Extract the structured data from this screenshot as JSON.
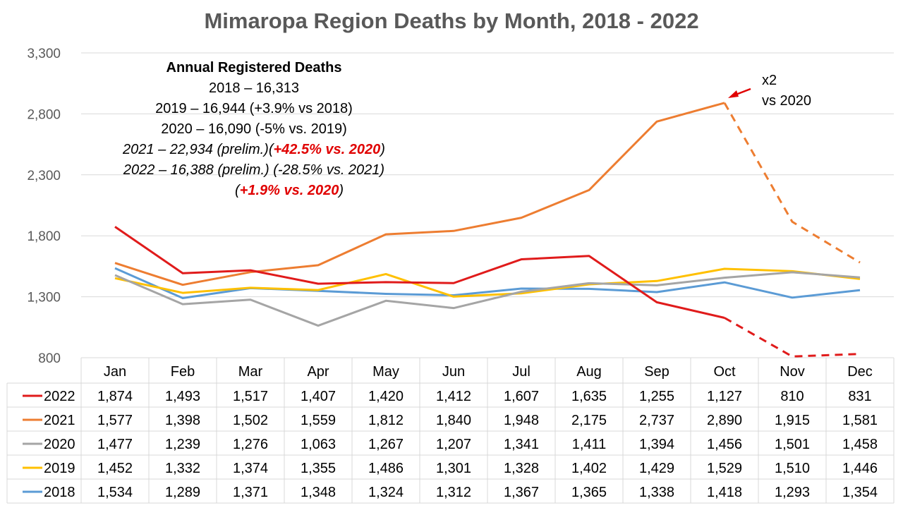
{
  "chart_data": {
    "type": "line",
    "title": "Mimaropa Region  Deaths by Month, 2018 - 2022",
    "categories": [
      "Jan",
      "Feb",
      "Mar",
      "Apr",
      "May",
      "Jun",
      "Jul",
      "Aug",
      "Sep",
      "Oct",
      "Nov",
      "Dec"
    ],
    "ylim": [
      800,
      3300
    ],
    "yticks": [
      800,
      1300,
      1800,
      2300,
      2800,
      3300
    ],
    "ytick_labels": [
      "800",
      "1,300",
      "1,800",
      "2,300",
      "2,800",
      "3,300"
    ],
    "grid": true,
    "legend": "data-table-below",
    "series": [
      {
        "name": "2022",
        "color": "#e01b1b",
        "dashed_from_index": 9,
        "values": [
          1874,
          1493,
          1517,
          1407,
          1420,
          1412,
          1607,
          1635,
          1255,
          1127,
          810,
          831
        ],
        "labels": [
          "1,874",
          "1,493",
          "1,517",
          "1,407",
          "1,420",
          "1,412",
          "1,607",
          "1,635",
          "1,255",
          "1,127",
          "810",
          "831"
        ]
      },
      {
        "name": "2021",
        "color": "#ed7d31",
        "dashed_from_index": 9,
        "values": [
          1577,
          1398,
          1502,
          1559,
          1812,
          1840,
          1948,
          2175,
          2737,
          2890,
          1915,
          1581
        ],
        "labels": [
          "1,577",
          "1,398",
          "1,502",
          "1,559",
          "1,812",
          "1,840",
          "1,948",
          "2,175",
          "2,737",
          "2,890",
          "1,915",
          "1,581"
        ]
      },
      {
        "name": "2020",
        "color": "#a5a5a5",
        "values": [
          1477,
          1239,
          1276,
          1063,
          1267,
          1207,
          1341,
          1411,
          1394,
          1456,
          1501,
          1458
        ],
        "labels": [
          "1,477",
          "1,239",
          "1,276",
          "1,063",
          "1,267",
          "1,207",
          "1,341",
          "1,411",
          "1,394",
          "1,456",
          "1,501",
          "1,458"
        ]
      },
      {
        "name": "2019",
        "color": "#ffc000",
        "values": [
          1452,
          1332,
          1374,
          1355,
          1486,
          1301,
          1328,
          1402,
          1429,
          1529,
          1510,
          1446
        ],
        "labels": [
          "1,452",
          "1,332",
          "1,374",
          "1,355",
          "1,486",
          "1,301",
          "1,328",
          "1,402",
          "1,429",
          "1,529",
          "1,510",
          "1,446"
        ]
      },
      {
        "name": "2018",
        "color": "#5b9bd5",
        "values": [
          1534,
          1289,
          1371,
          1348,
          1324,
          1312,
          1367,
          1365,
          1338,
          1418,
          1293,
          1354
        ],
        "labels": [
          "1,534",
          "1,289",
          "1,371",
          "1,348",
          "1,324",
          "1,312",
          "1,367",
          "1,365",
          "1,338",
          "1,418",
          "1,293",
          "1,354"
        ]
      }
    ],
    "annotations": {
      "box_heading": "Annual Registered Deaths",
      "line_2018": "2018 – 16,313",
      "line_2019": "2019 – 16,944 (+3.9% vs 2018)",
      "line_2020": "2020 – 16,090 (-5% vs. 2019)",
      "line_2021_a": "2021 – 22,934 (prelim.)(",
      "line_2021_b": "+42.5% vs. 2020",
      "line_2021_c": ")",
      "line_2022": "2022 – 16,388 (prelim.) (-28.5% vs. 2021)",
      "line_2022b_a": "(",
      "line_2022b_b": "+1.9% vs. 2020",
      "line_2022b_c": ")",
      "arrow_label_1": "x2",
      "arrow_label_2": "vs 2020"
    }
  }
}
